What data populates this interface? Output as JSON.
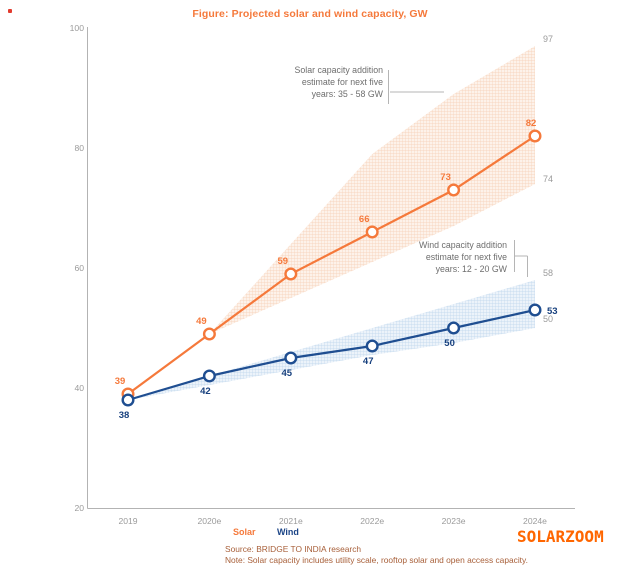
{
  "title": "Figure: Projected solar and wind capacity, GW",
  "watermark": "SOLARZOOM",
  "legend": {
    "solar": "Solar",
    "wind": "Wind"
  },
  "annotations": {
    "solar": {
      "lines": [
        "Solar capacity addition",
        "estimate for next five",
        "years: 35 - 58 GW"
      ]
    },
    "wind": {
      "lines": [
        "Wind capacity addition",
        "estimate for next five",
        "years: 12 - 20 GW"
      ]
    }
  },
  "footer": {
    "source": "Source: BRIDGE TO INDIA research",
    "note": "Note: Solar capacity includes utility scale, rooftop solar and open access capacity."
  },
  "colors": {
    "solar": "#f5793b",
    "wind_line": "#1f4e91",
    "wind_label": "#17407e",
    "gray_label": "#9b9b9b",
    "axis": "#b3b3b3",
    "title": "#f5793b",
    "watermark": "#ff6600"
  },
  "chart_data": {
    "type": "line",
    "title": "Figure: Projected solar and wind capacity, GW",
    "categories": [
      "2019",
      "2020e",
      "2021e",
      "2022e",
      "2023e",
      "2024e"
    ],
    "y_ticks": [
      100,
      80,
      60,
      40,
      20
    ],
    "ylim": [
      20,
      100
    ],
    "series": [
      {
        "name": "Solar",
        "color": "#f5793b",
        "label_color": "#f5793b",
        "values": [
          39,
          49,
          59,
          66,
          73,
          82
        ],
        "band_top": [
          null,
          49,
          64,
          79,
          89,
          97
        ],
        "band_bottom": [
          null,
          49,
          55,
          61,
          67,
          74
        ],
        "band_range_label": "35 - 58 GW"
      },
      {
        "name": "Wind",
        "color": "#1f4e91",
        "label_color": "#17407e",
        "values": [
          38,
          42,
          45,
          47,
          50,
          53
        ],
        "band_top": [
          38,
          42,
          46,
          50,
          54,
          58
        ],
        "band_bottom": [
          38,
          40.5,
          43,
          45.5,
          47.5,
          50
        ],
        "band_range_label": "12 - 20 GW"
      }
    ],
    "band_edge_labels": [
      97,
      74,
      58,
      50
    ],
    "grid": false,
    "legend_position": "bottom"
  }
}
